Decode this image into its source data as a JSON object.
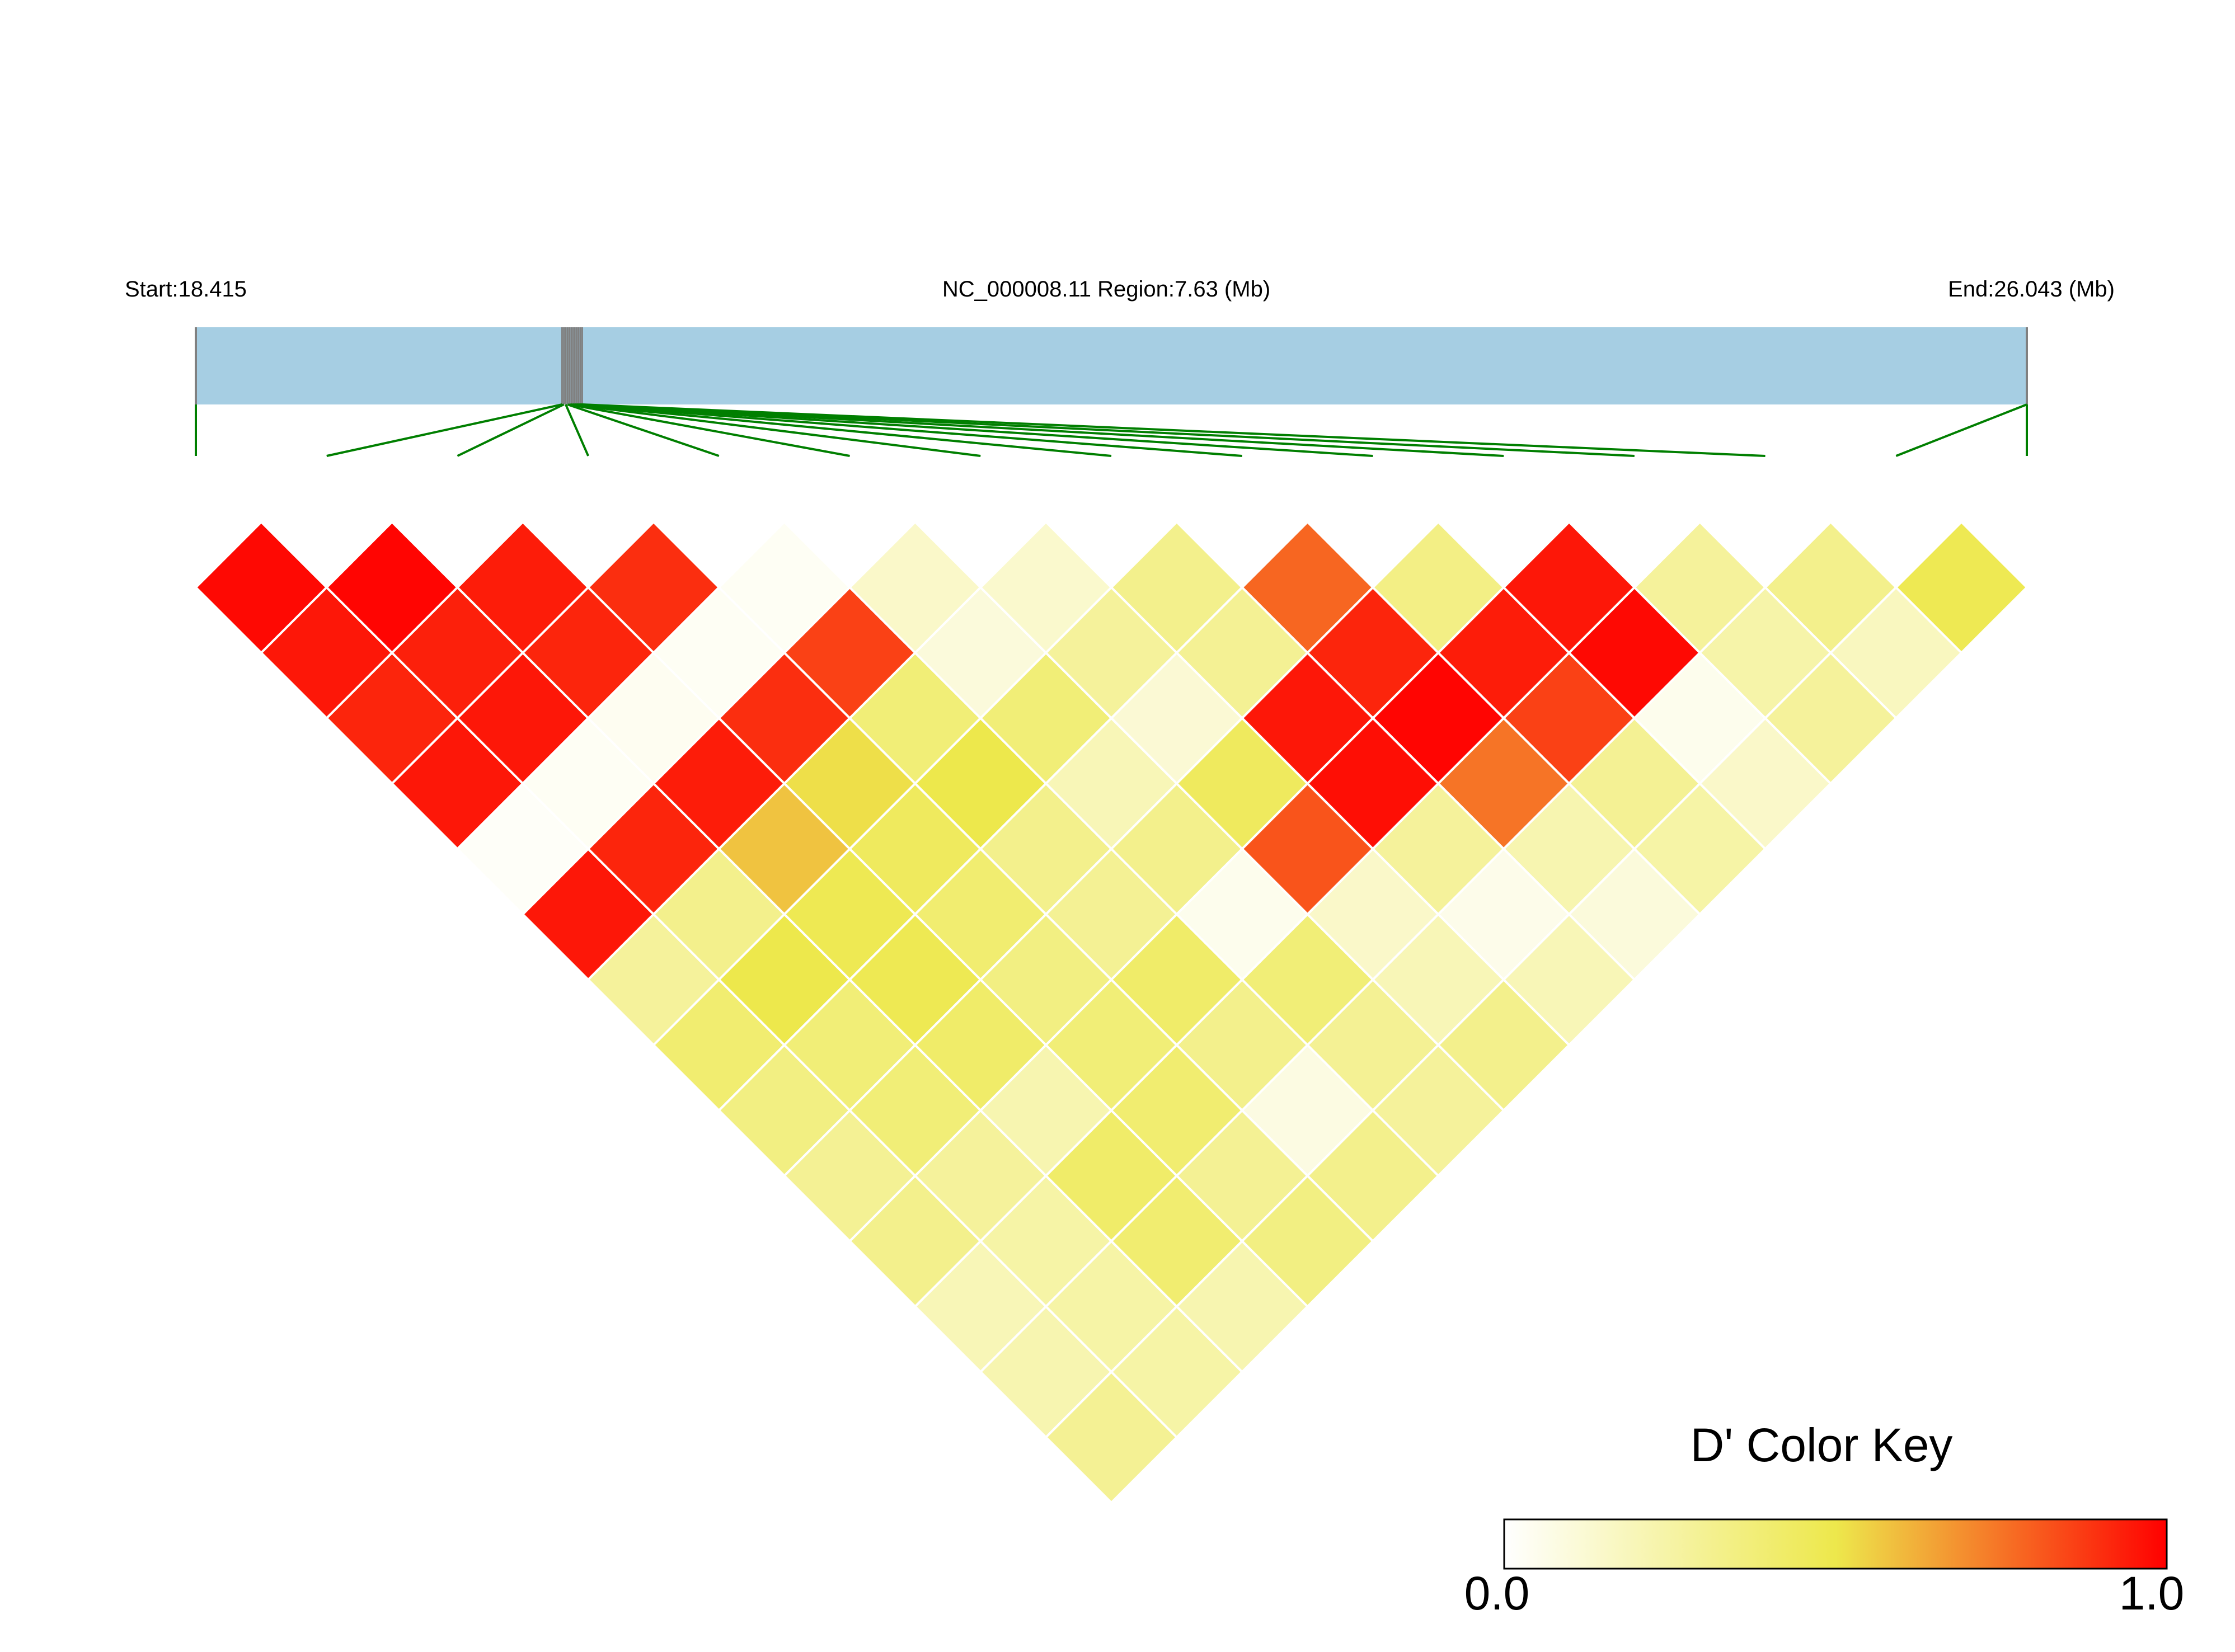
{
  "header": {
    "start_label": "Start:18.415",
    "region_label": "NC_000008.11 Region:7.63 (Mb)",
    "end_label": "End:26.043 (Mb)"
  },
  "chart_data": {
    "type": "heatmap",
    "title": "",
    "chromosome": "NC_000008.11",
    "start_mb": 18.415,
    "end_mb": 26.043,
    "region_mb": 7.63,
    "n_snps": 15,
    "snp_track_fractions": [
      0.0,
      0.2,
      0.201,
      0.202,
      0.203,
      0.204,
      0.205,
      0.206,
      0.207,
      0.208,
      0.209,
      0.21,
      0.211,
      1.0,
      1.0
    ],
    "measure": "D'",
    "dprime_matrix_lower": [
      [
        0.98
      ],
      [
        0.95,
        0.99
      ],
      [
        0.92,
        0.93,
        0.94
      ],
      [
        0.95,
        0.95,
        0.92,
        0.9
      ],
      [
        0.02,
        0.03,
        0.04,
        0.03,
        0.03
      ],
      [
        0.95,
        0.92,
        0.94,
        0.9,
        0.86,
        0.15
      ],
      [
        0.28,
        0.32,
        0.58,
        0.52,
        0.38,
        0.1,
        0.14
      ],
      [
        0.4,
        0.5,
        0.48,
        0.45,
        0.5,
        0.38,
        0.28,
        0.32
      ],
      [
        0.35,
        0.38,
        0.48,
        0.4,
        0.32,
        0.2,
        0.12,
        0.3,
        0.78
      ],
      [
        0.3,
        0.38,
        0.42,
        0.35,
        0.3,
        0.32,
        0.45,
        0.95,
        0.92,
        0.34
      ],
      [
        0.32,
        0.28,
        0.22,
        0.38,
        0.42,
        0.05,
        0.82,
        0.97,
        0.99,
        0.94,
        0.95
      ],
      [
        0.2,
        0.25,
        0.42,
        0.4,
        0.32,
        0.38,
        0.15,
        0.28,
        0.75,
        0.86,
        0.98,
        0.28
      ],
      [
        0.22,
        0.25,
        0.4,
        0.3,
        0.08,
        0.3,
        0.2,
        0.06,
        0.22,
        0.3,
        0.05,
        0.24,
        0.32
      ],
      [
        0.3,
        0.25,
        0.22,
        0.35,
        0.32,
        0.28,
        0.32,
        0.2,
        0.1,
        0.25,
        0.15,
        0.28,
        0.18,
        0.48
      ]
    ],
    "color_scale": {
      "min": 0.0,
      "mid": 0.5,
      "max": 1.0,
      "colors": [
        "#ffffff",
        "#ede84c",
        "#ff0000"
      ]
    },
    "legend": {
      "title": "D' Color Key",
      "min_label": "0.0",
      "max_label": "1.0",
      "placement": "bottom-right"
    },
    "colors": {
      "track": "#a6cee3",
      "connectors": "#007f00",
      "cell_border": "#ffffff"
    }
  }
}
